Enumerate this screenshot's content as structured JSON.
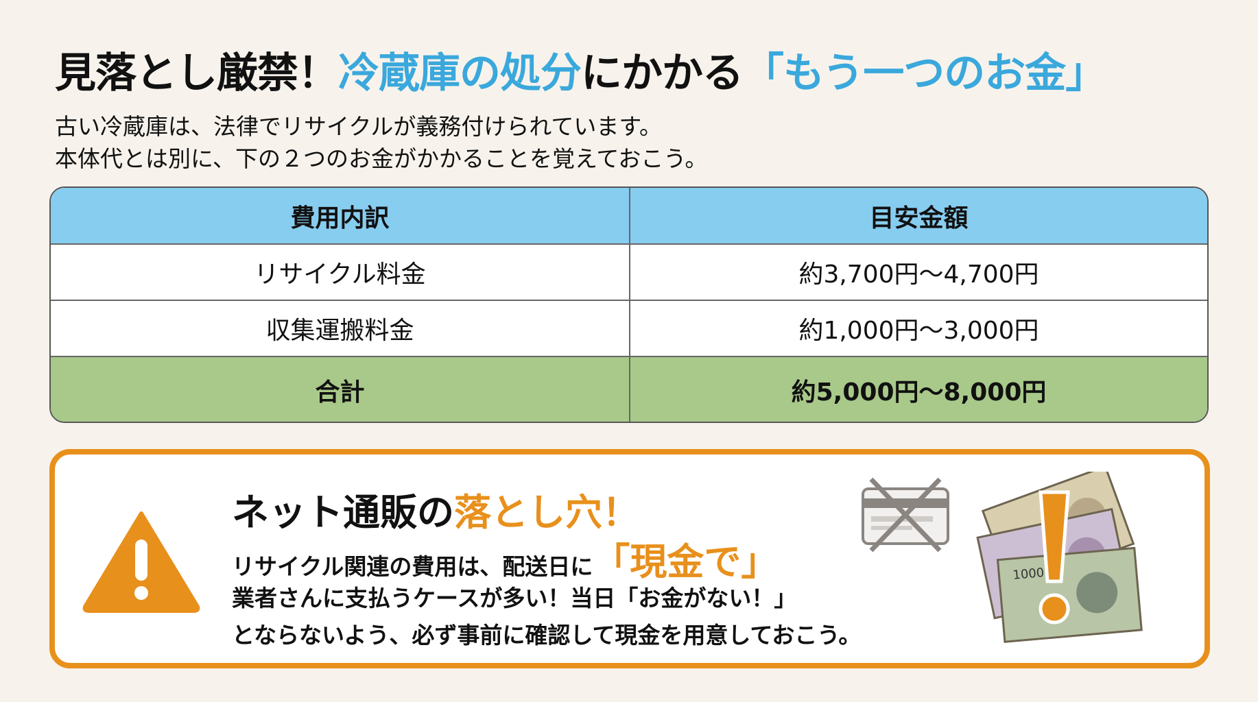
{
  "title": {
    "part1": "見落とし厳禁！",
    "part2": "冷蔵庫の処分",
    "part3": "にかかる",
    "part4": "「もう一つのお金」"
  },
  "intro": [
    "古い冷蔵庫は、法律でリサイクルが義務付けられています。",
    "本体代とは別に、下の２つのお金がかかることを覚えておこう。"
  ],
  "table": {
    "headers": [
      "費用内訳",
      "目安金額"
    ],
    "rows": [
      [
        "リサイクル料金",
        "約3,700円〜4,700円"
      ],
      [
        "収集運搬料金",
        "約1,000円〜3,000円"
      ]
    ],
    "total": [
      "合計",
      "約5,000円〜8,000円"
    ]
  },
  "warning": {
    "heading_a": "ネット通販の",
    "heading_b": "落とし穴！",
    "line1_a": "リサイクル関連の費用は、配送日に",
    "line1_b": "「現金で」",
    "line2": "業者さんに支払うケースが多い！当日「お金がない！」",
    "line3": "とならないよう、必ず事前に確認して現金を用意しておこう。",
    "icons": [
      "warning-triangle-icon",
      "crossed-credit-card-icon",
      "banknotes-exclamation-icon"
    ]
  },
  "colors": {
    "accent_blue": "#3aa8dc",
    "accent_orange": "#e8901c",
    "header_blue": "#87cdf0",
    "total_green": "#a9c98a"
  }
}
